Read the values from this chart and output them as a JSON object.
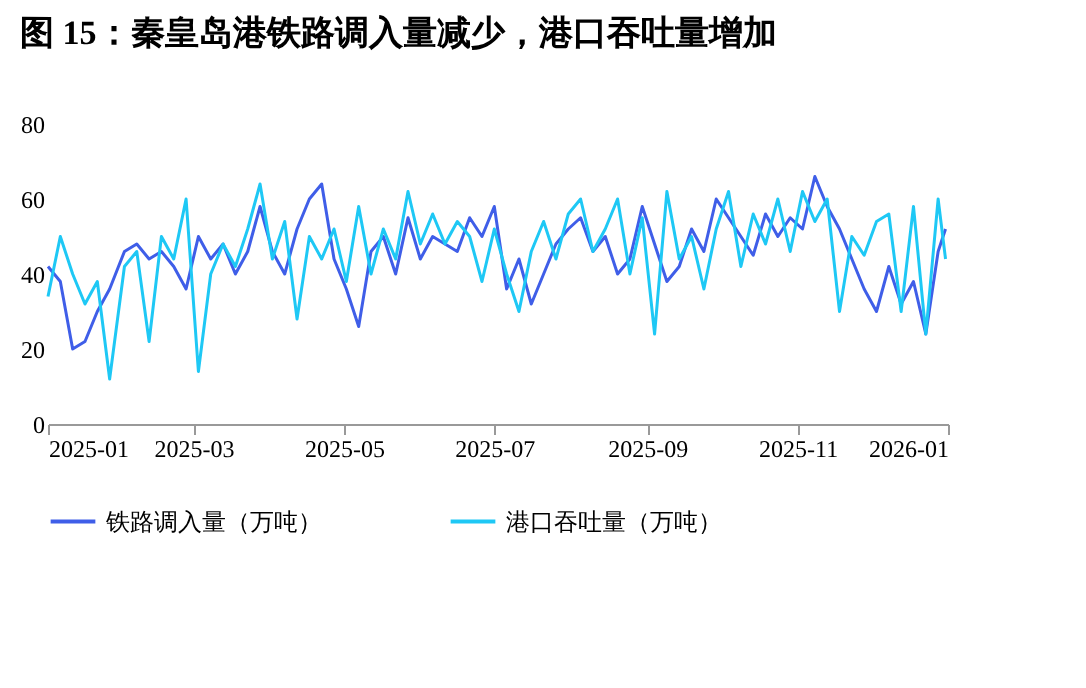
{
  "chart_data": {
    "type": "line",
    "title": "图 15：秦皇岛港铁路调入量减少，港口吞吐量增加",
    "x": [
      "2025-01-01",
      "2025-01-06",
      "2025-01-11",
      "2025-01-16",
      "2025-01-21",
      "2025-01-26",
      "2025-02-01",
      "2025-02-06",
      "2025-02-11",
      "2025-02-16",
      "2025-02-21",
      "2025-02-26",
      "2025-03-03",
      "2025-03-08",
      "2025-03-13",
      "2025-03-18",
      "2025-03-23",
      "2025-03-28",
      "2025-04-02",
      "2025-04-07",
      "2025-04-12",
      "2025-04-17",
      "2025-04-22",
      "2025-04-27",
      "2025-05-02",
      "2025-05-07",
      "2025-05-12",
      "2025-05-17",
      "2025-05-22",
      "2025-05-27",
      "2025-06-01",
      "2025-06-06",
      "2025-06-11",
      "2025-06-16",
      "2025-06-21",
      "2025-06-26",
      "2025-07-01",
      "2025-07-06",
      "2025-07-11",
      "2025-07-16",
      "2025-07-21",
      "2025-07-26",
      "2025-07-31",
      "2025-08-05",
      "2025-08-10",
      "2025-08-15",
      "2025-08-20",
      "2025-08-25",
      "2025-08-30",
      "2025-09-04",
      "2025-09-09",
      "2025-09-14",
      "2025-09-19",
      "2025-09-24",
      "2025-09-29",
      "2025-10-04",
      "2025-10-09",
      "2025-10-14",
      "2025-10-19",
      "2025-10-24",
      "2025-10-29",
      "2025-11-03",
      "2025-11-08",
      "2025-11-13",
      "2025-11-18",
      "2025-11-23",
      "2025-11-28",
      "2025-12-03",
      "2025-12-08",
      "2025-12-13",
      "2025-12-18",
      "2025-12-23",
      "2025-12-28",
      "2025-12-31"
    ],
    "series": [
      {
        "name": "铁路调入量（万吨）",
        "color": "#3f5ee8",
        "values": [
          42,
          38,
          20,
          22,
          30,
          36,
          46,
          48,
          44,
          46,
          42,
          36,
          50,
          44,
          48,
          40,
          46,
          58,
          46,
          40,
          52,
          60,
          64,
          44,
          36,
          26,
          46,
          50,
          40,
          55,
          44,
          50,
          48,
          46,
          55,
          50,
          58,
          36,
          44,
          32,
          40,
          48,
          52,
          55,
          46,
          50,
          40,
          44,
          58,
          48,
          38,
          42,
          52,
          46,
          60,
          55,
          50,
          45,
          56,
          50,
          55,
          52,
          66,
          58,
          52,
          44,
          36,
          30,
          42,
          32,
          38,
          24,
          46,
          52
        ]
      },
      {
        "name": "港口吞吐量（万吨）",
        "color": "#1ec8f5",
        "values": [
          34,
          50,
          40,
          32,
          38,
          12,
          42,
          46,
          22,
          50,
          44,
          60,
          14,
          40,
          48,
          42,
          52,
          64,
          44,
          54,
          28,
          50,
          44,
          52,
          38,
          58,
          40,
          52,
          44,
          62,
          48,
          56,
          48,
          54,
          50,
          38,
          52,
          40,
          30,
          46,
          54,
          44,
          56,
          60,
          46,
          52,
          60,
          40,
          55,
          24,
          62,
          44,
          50,
          36,
          52,
          62,
          42,
          56,
          48,
          60,
          46,
          62,
          54,
          60,
          30,
          50,
          45,
          54,
          56,
          30,
          58,
          24,
          60,
          44
        ]
      }
    ],
    "xlim": [
      "2025-01-01",
      "2026-01-01"
    ],
    "xticks": [
      "2025-01",
      "2025-03",
      "2025-05",
      "2025-07",
      "2025-09",
      "2025-11",
      "2026-01"
    ],
    "ylim": [
      0,
      80
    ],
    "yticks": [
      0,
      20,
      40,
      60,
      80
    ],
    "grid": false,
    "legend": "bottom",
    "line_style": "solid",
    "marker": "none"
  }
}
